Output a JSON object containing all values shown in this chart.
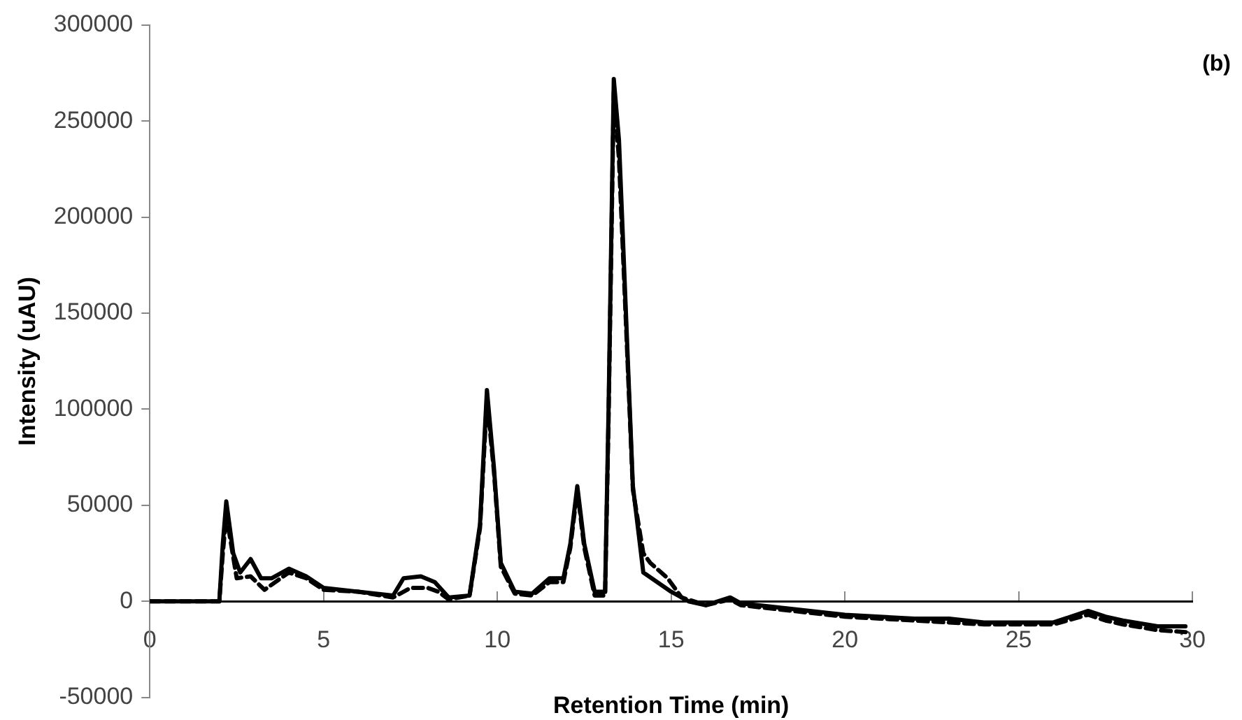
{
  "chart_data": {
    "type": "line",
    "xlabel": "Retention Time (min)",
    "ylabel": "Intensity (uAU)",
    "annotations": [
      "(b)"
    ],
    "xlim": [
      0,
      30
    ],
    "xticks": [
      0,
      5,
      10,
      15,
      20,
      25,
      30
    ],
    "ylim": [
      -50000,
      300000
    ],
    "yticks": [
      -50000,
      0,
      50000,
      100000,
      150000,
      200000,
      250000,
      300000
    ],
    "grid": false,
    "legend": false,
    "marker": "none",
    "series": [
      {
        "color": "#000000",
        "line_style": "solid",
        "x": [
          0,
          1,
          2,
          2.1,
          2.2,
          2.4,
          2.6,
          2.9,
          3.2,
          3.5,
          4,
          4.5,
          5,
          6,
          7,
          7.3,
          7.8,
          8.2,
          8.6,
          9.2,
          9.5,
          9.7,
          9.9,
          10.1,
          10.5,
          11,
          11.5,
          11.9,
          12.1,
          12.3,
          12.5,
          12.8,
          13.1,
          13.2,
          13.35,
          13.5,
          13.7,
          13.9,
          14.2,
          14.6,
          15,
          15.5,
          16,
          16.7,
          17,
          18,
          19,
          20,
          21,
          22,
          23,
          24,
          25,
          26,
          27,
          27.5,
          28,
          29,
          29.8
        ],
        "values": [
          0,
          0,
          0,
          30000,
          52000,
          25000,
          15000,
          22000,
          12000,
          12000,
          17000,
          13000,
          7000,
          5000,
          3000,
          12000,
          13000,
          10000,
          2000,
          3000,
          40000,
          110000,
          70000,
          20000,
          5000,
          4000,
          12000,
          12000,
          30000,
          60000,
          30000,
          5000,
          5000,
          100000,
          272000,
          240000,
          150000,
          60000,
          15000,
          10000,
          5000,
          0,
          -2000,
          2000,
          -1000,
          -3000,
          -5000,
          -7000,
          -8000,
          -9000,
          -9000,
          -11000,
          -11000,
          -11000,
          -5000,
          -8000,
          -10000,
          -13000,
          -13000
        ]
      },
      {
        "color": "#000000",
        "line_style": "dashed",
        "x": [
          0,
          1,
          2,
          2.1,
          2.2,
          2.5,
          2.9,
          3.3,
          4,
          4.5,
          5,
          6,
          7,
          7.5,
          8,
          8.3,
          8.6,
          9.2,
          9.5,
          9.7,
          9.9,
          10.1,
          10.5,
          11,
          11.5,
          11.9,
          12.1,
          12.3,
          12.5,
          12.8,
          13.1,
          13.2,
          13.35,
          13.5,
          13.7,
          13.9,
          14.2,
          14.4,
          14.9,
          15.3,
          16,
          16.7,
          17,
          18,
          19,
          20,
          21,
          22,
          23,
          24,
          25,
          26,
          27,
          27.5,
          28,
          29,
          29.8
        ],
        "values": [
          0,
          0,
          0,
          25000,
          45000,
          12000,
          13000,
          6000,
          15000,
          12000,
          6000,
          5000,
          2000,
          7000,
          7000,
          5000,
          1000,
          3000,
          38000,
          105000,
          68000,
          18000,
          4000,
          3000,
          10000,
          10000,
          28000,
          58000,
          28000,
          3000,
          3000,
          95000,
          265000,
          230000,
          145000,
          58000,
          25000,
          20000,
          12000,
          2000,
          -2000,
          1000,
          -2000,
          -4000,
          -6000,
          -8000,
          -9000,
          -10000,
          -11000,
          -12000,
          -12000,
          -12000,
          -7000,
          -10000,
          -12000,
          -15000,
          -16000
        ]
      }
    ]
  }
}
